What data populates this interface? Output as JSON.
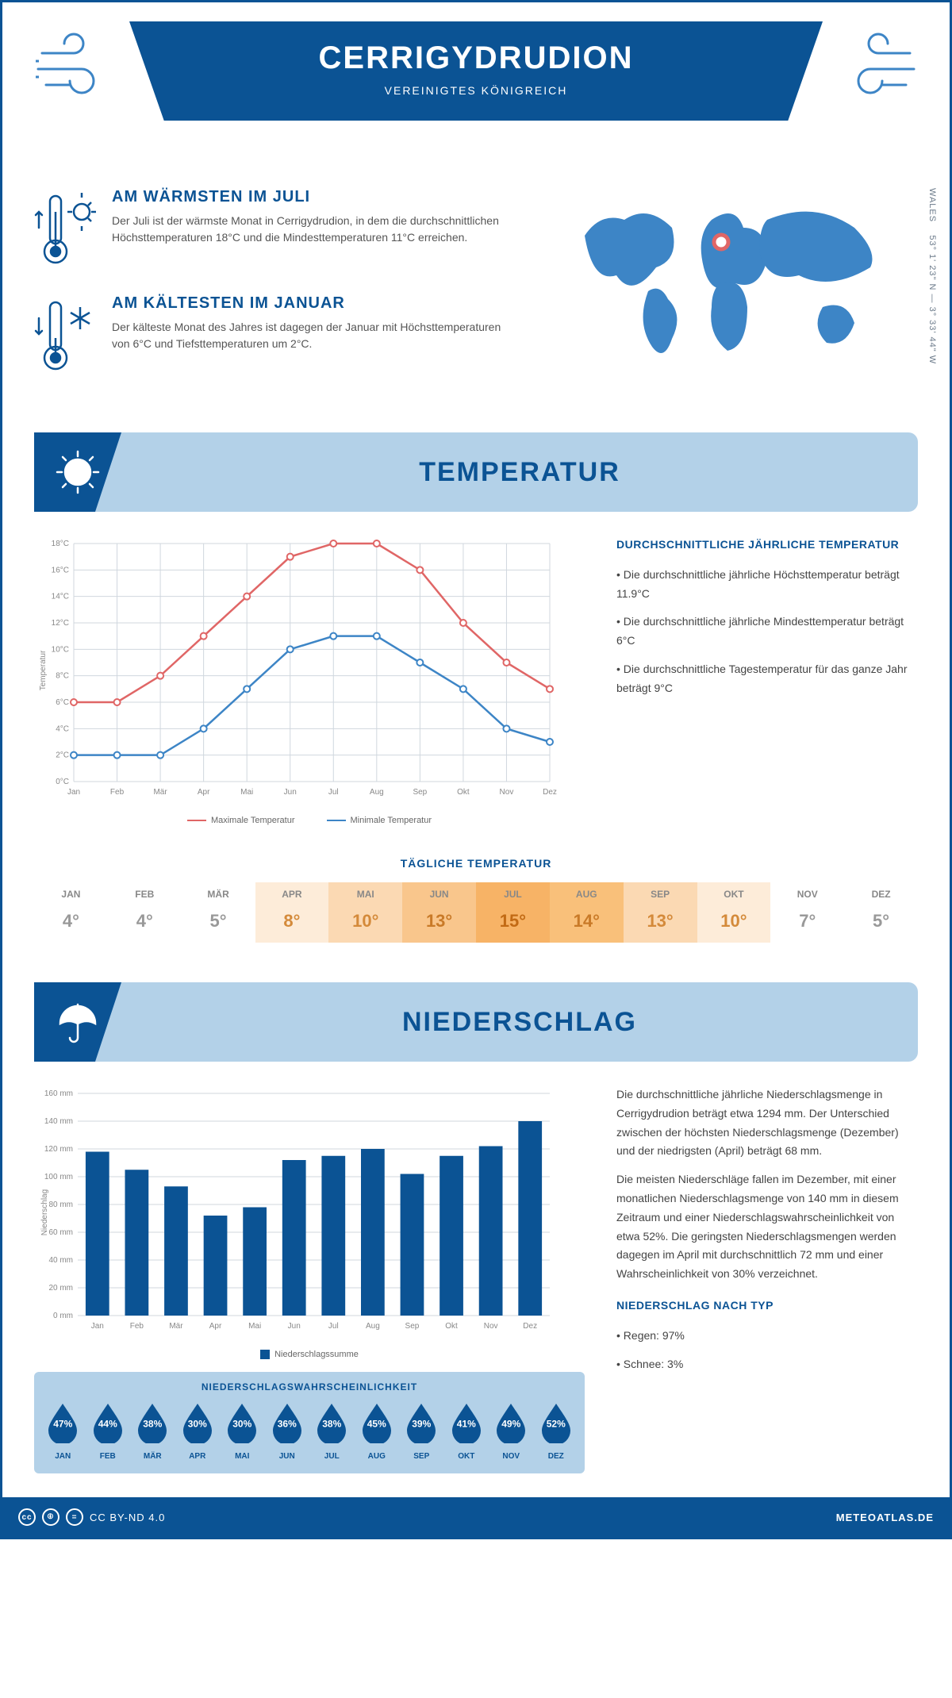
{
  "header": {
    "title": "CERRIGYDRUDION",
    "subtitle": "VEREINIGTES KÖNIGREICH"
  },
  "coords": {
    "lat": "53° 1' 23\" N",
    "lon": "3° 33' 44\" W",
    "region": "WALES"
  },
  "facts": {
    "warm": {
      "title": "AM WÄRMSTEN IM JULI",
      "text": "Der Juli ist der wärmste Monat in Cerrigydrudion, in dem die durchschnittlichen Höchsttemperaturen 18°C und die Mindesttemperaturen 11°C erreichen."
    },
    "cold": {
      "title": "AM KÄLTESTEN IM JANUAR",
      "text": "Der kälteste Monat des Jahres ist dagegen der Januar mit Höchsttemperaturen von 6°C und Tiefsttemperaturen um 2°C."
    }
  },
  "temp_section": {
    "title": "TEMPERATUR"
  },
  "temp_chart": {
    "months": [
      "Jan",
      "Feb",
      "Mär",
      "Apr",
      "Mai",
      "Jun",
      "Jul",
      "Aug",
      "Sep",
      "Okt",
      "Nov",
      "Dez"
    ],
    "max": [
      6,
      6,
      8,
      11,
      14,
      17,
      18,
      18,
      16,
      12,
      9,
      7
    ],
    "min": [
      2,
      2,
      2,
      4,
      7,
      10,
      11,
      11,
      9,
      7,
      4,
      3
    ],
    "ylim": [
      0,
      18
    ],
    "ytick": 2,
    "max_color": "#e06666",
    "min_color": "#3d85c6",
    "grid_color": "#d0d7de",
    "ylabel": "Temperatur",
    "legend_max": "Maximale Temperatur",
    "legend_min": "Minimale Temperatur"
  },
  "temp_side": {
    "title": "DURCHSCHNITTLICHE JÄHRLICHE TEMPERATUR",
    "b1": "• Die durchschnittliche jährliche Höchsttemperatur beträgt 11.9°C",
    "b2": "• Die durchschnittliche jährliche Mindesttemperatur beträgt 6°C",
    "b3": "• Die durchschnittliche Tagestemperatur für das ganze Jahr beträgt 9°C"
  },
  "daily": {
    "title": "TÄGLICHE TEMPERATUR",
    "months": [
      "JAN",
      "FEB",
      "MÄR",
      "APR",
      "MAI",
      "JUN",
      "JUL",
      "AUG",
      "SEP",
      "OKT",
      "NOV",
      "DEZ"
    ],
    "values": [
      "4°",
      "4°",
      "5°",
      "8°",
      "10°",
      "13°",
      "15°",
      "14°",
      "13°",
      "10°",
      "7°",
      "5°"
    ],
    "colors": [
      "#ffffff",
      "#ffffff",
      "#ffffff",
      "#fdecd9",
      "#fbd9b3",
      "#f9c68c",
      "#f7b366",
      "#f9c07a",
      "#fbd9b3",
      "#fdecd9",
      "#ffffff",
      "#ffffff"
    ],
    "text_colors": [
      "#999",
      "#999",
      "#999",
      "#d48a3a",
      "#d48a3a",
      "#c97a28",
      "#c26a14",
      "#c97a28",
      "#d48a3a",
      "#d48a3a",
      "#999",
      "#999"
    ]
  },
  "precip_section": {
    "title": "NIEDERSCHLAG"
  },
  "precip_chart": {
    "months": [
      "Jan",
      "Feb",
      "Mär",
      "Apr",
      "Mai",
      "Jun",
      "Jul",
      "Aug",
      "Sep",
      "Okt",
      "Nov",
      "Dez"
    ],
    "values": [
      118,
      105,
      93,
      72,
      78,
      112,
      115,
      120,
      102,
      115,
      122,
      140
    ],
    "ylim": [
      0,
      160
    ],
    "ytick": 20,
    "bar_color": "#0b5394",
    "ylabel": "Niederschlag",
    "legend": "Niederschlagssumme"
  },
  "precip_side": {
    "p1": "Die durchschnittliche jährliche Niederschlagsmenge in Cerrigydrudion beträgt etwa 1294 mm. Der Unterschied zwischen der höchsten Niederschlagsmenge (Dezember) und der niedrigsten (April) beträgt 68 mm.",
    "p2": "Die meisten Niederschläge fallen im Dezember, mit einer monatlichen Niederschlagsmenge von 140 mm in diesem Zeitraum und einer Niederschlagswahrscheinlichkeit von etwa 52%. Die geringsten Niederschlagsmengen werden dagegen im April mit durchschnittlich 72 mm und einer Wahrscheinlichkeit von 30% verzeichnet.",
    "type_title": "NIEDERSCHLAG NACH TYP",
    "type1": "• Regen: 97%",
    "type2": "• Schnee: 3%"
  },
  "prob": {
    "title": "NIEDERSCHLAGSWAHRSCHEINLICHKEIT",
    "months": [
      "JAN",
      "FEB",
      "MÄR",
      "APR",
      "MAI",
      "JUN",
      "JUL",
      "AUG",
      "SEP",
      "OKT",
      "NOV",
      "DEZ"
    ],
    "values": [
      "47%",
      "44%",
      "38%",
      "30%",
      "30%",
      "36%",
      "38%",
      "45%",
      "39%",
      "41%",
      "49%",
      "52%"
    ],
    "drop_color": "#0b5394"
  },
  "footer": {
    "license": "CC BY-ND 4.0",
    "site": "METEOATLAS.DE"
  }
}
